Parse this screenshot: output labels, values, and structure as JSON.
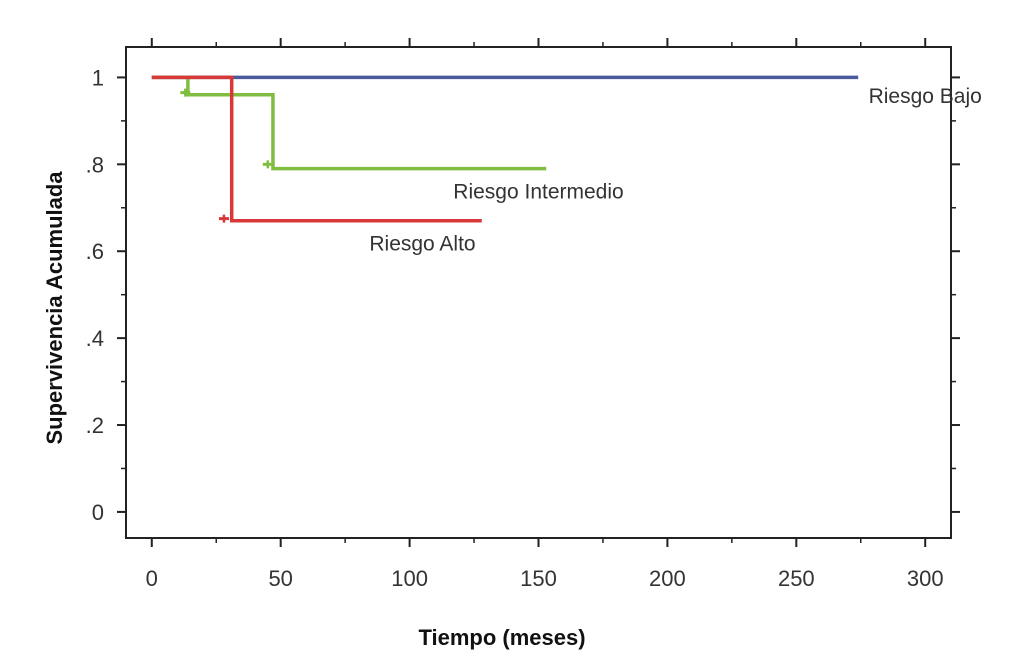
{
  "chart_data": {
    "type": "line",
    "subtype": "kaplan-meier-step",
    "xlabel": "Tiempo (meses)",
    "ylabel": "Supervivencia Acumulada",
    "xlim": [
      -10,
      310
    ],
    "ylim": [
      -0.06,
      1.07
    ],
    "x_ticks": [
      0,
      50,
      100,
      150,
      200,
      250,
      300
    ],
    "x_tick_labels": [
      "0",
      "50",
      "100",
      "150",
      "200",
      "250",
      "300"
    ],
    "y_ticks": [
      0,
      0.2,
      0.4,
      0.6,
      0.8,
      1.0
    ],
    "y_tick_labels": [
      "0",
      ".2",
      ".4",
      ".6",
      ".8",
      "1"
    ],
    "grid": false,
    "legend": "none",
    "series": [
      {
        "name": "Riesgo Bajo",
        "color": "#4a5a9a",
        "steps": [
          [
            0,
            1.0
          ],
          [
            274,
            1.0
          ]
        ],
        "censored": [],
        "label_at": [
          300,
          0.96
        ]
      },
      {
        "name": "Riesgo Intermedio",
        "color": "#80bd40",
        "steps": [
          [
            0,
            1.0
          ],
          [
            14,
            1.0
          ],
          [
            14,
            0.96
          ],
          [
            47,
            0.96
          ],
          [
            47,
            0.79
          ],
          [
            153,
            0.79
          ]
        ],
        "censored": [
          [
            13,
            0.965
          ],
          [
            45,
            0.8
          ]
        ],
        "label_at": [
          150,
          0.74
        ]
      },
      {
        "name": "Riesgo Alto",
        "color": "#d93838",
        "steps": [
          [
            0,
            1.0
          ],
          [
            31,
            1.0
          ],
          [
            31,
            0.67
          ],
          [
            128,
            0.67
          ]
        ],
        "censored": [
          [
            28,
            0.675
          ]
        ],
        "label_at": [
          105,
          0.62
        ]
      }
    ]
  }
}
